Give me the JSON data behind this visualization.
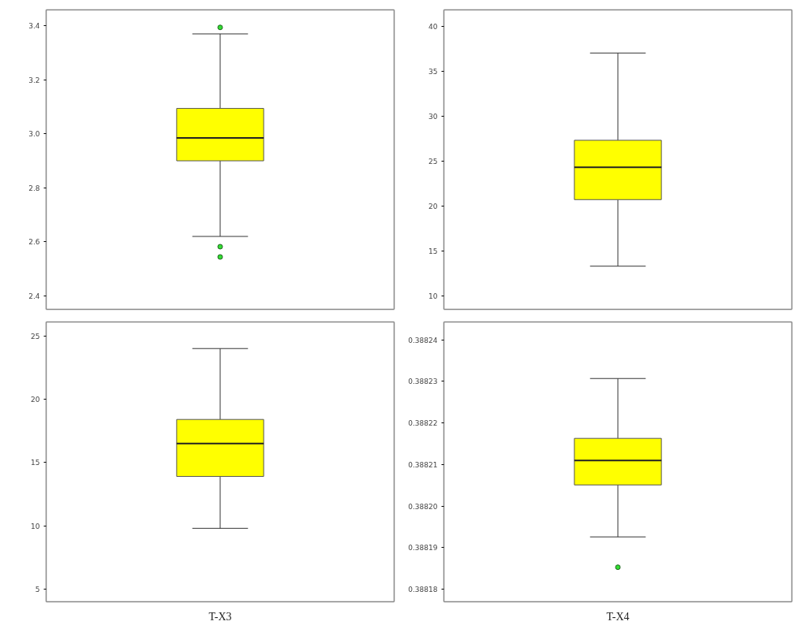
{
  "chart_data": [
    {
      "type": "box",
      "categories": [
        null
      ],
      "ylim": [
        2.35,
        3.459
      ],
      "yticks": [
        2.4,
        2.6,
        2.8,
        {
          "value": 3.0,
          "label": "3.0"
        },
        3.2,
        3.4
      ],
      "grid": false,
      "series": [
        {
          "color": "#ffff00",
          "boxes": [
            {
              "low": 2.62,
              "q1": 2.9,
              "median": 2.985,
              "q3": 3.094,
              "high": 3.37,
              "outliers": [
                3.394,
                2.582,
                2.544
              ]
            }
          ]
        }
      ]
    },
    {
      "type": "box",
      "categories": [
        null
      ],
      "ylim": [
        8.5,
        41.8
      ],
      "yticks": [
        10,
        15,
        20,
        25,
        30,
        35,
        40
      ],
      "grid": false,
      "series": [
        {
          "color": "#ffff00",
          "boxes": [
            {
              "low": 13.3,
              "q1": 20.7,
              "median": 24.3,
              "q3": 27.3,
              "high": 37.0
            }
          ]
        }
      ]
    },
    {
      "type": "box",
      "categories": [
        "T-X3"
      ],
      "ylim": [
        4.0,
        26.1
      ],
      "yticks": [
        5,
        10,
        15,
        20,
        25
      ],
      "grid": false,
      "series": [
        {
          "color": "#ffff00",
          "boxes": [
            {
              "low": 9.8,
              "q1": 13.9,
              "median": 16.5,
              "q3": 18.4,
              "high": 24.0
            }
          ]
        }
      ]
    },
    {
      "type": "box",
      "categories": [
        "T-X4"
      ],
      "ylim": [
        0.388177,
        0.3882443
      ],
      "yticks": [
        {
          "value": 0.38818,
          "label": "0.38818"
        },
        {
          "value": 0.38819,
          "label": "0.38819"
        },
        {
          "value": 0.3882,
          "label": "0.38820"
        },
        {
          "value": 0.38821,
          "label": "0.38821"
        },
        {
          "value": 0.38822,
          "label": "0.38822"
        },
        {
          "value": 0.38823,
          "label": "0.38823"
        },
        {
          "value": 0.38824,
          "label": "0.38824"
        }
      ],
      "grid": false,
      "series": [
        {
          "color": "#ffff00",
          "boxes": [
            {
              "low": 0.3881926,
              "q1": 0.3882051,
              "median": 0.388211,
              "q3": 0.3882163,
              "high": 0.3882307,
              "outliers": [
                0.3881853
              ]
            }
          ]
        }
      ]
    }
  ]
}
